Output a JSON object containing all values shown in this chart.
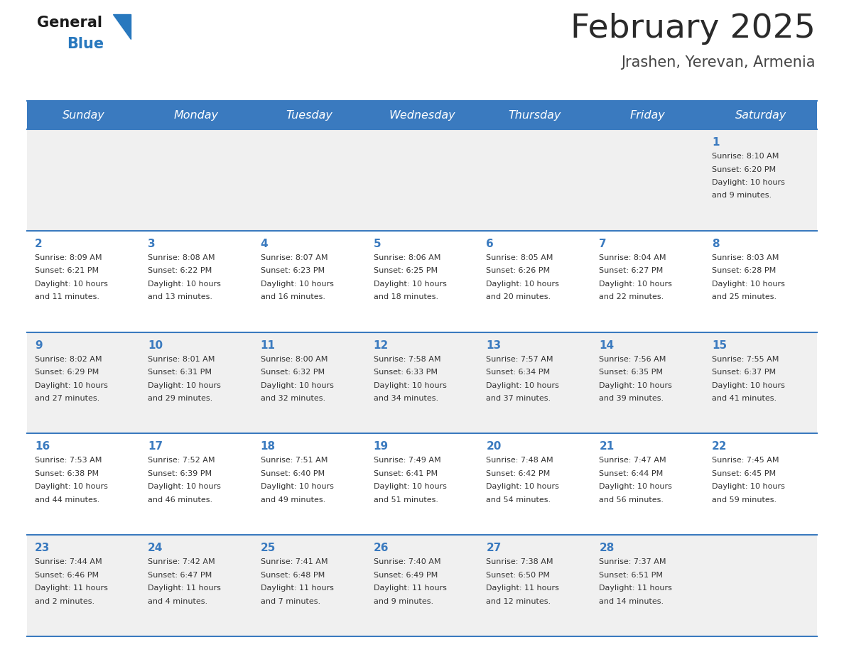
{
  "title": "February 2025",
  "subtitle": "Jrashen, Yerevan, Armenia",
  "days_of_week": [
    "Sunday",
    "Monday",
    "Tuesday",
    "Wednesday",
    "Thursday",
    "Friday",
    "Saturday"
  ],
  "header_bg": "#3a7abf",
  "header_text": "#ffffff",
  "row_bg_gray": "#f0f0f0",
  "row_bg_white": "#ffffff",
  "separator_color": "#3a7abf",
  "day_number_color": "#3a7abf",
  "text_color": "#333333",
  "title_color": "#2a2a2a",
  "subtitle_color": "#444444",
  "calendar": [
    [
      null,
      null,
      null,
      null,
      null,
      null,
      {
        "day": 1,
        "sunrise": "8:10 AM",
        "sunset": "6:20 PM",
        "daylight": "10 hours and 9 minutes."
      }
    ],
    [
      {
        "day": 2,
        "sunrise": "8:09 AM",
        "sunset": "6:21 PM",
        "daylight": "10 hours and 11 minutes."
      },
      {
        "day": 3,
        "sunrise": "8:08 AM",
        "sunset": "6:22 PM",
        "daylight": "10 hours and 13 minutes."
      },
      {
        "day": 4,
        "sunrise": "8:07 AM",
        "sunset": "6:23 PM",
        "daylight": "10 hours and 16 minutes."
      },
      {
        "day": 5,
        "sunrise": "8:06 AM",
        "sunset": "6:25 PM",
        "daylight": "10 hours and 18 minutes."
      },
      {
        "day": 6,
        "sunrise": "8:05 AM",
        "sunset": "6:26 PM",
        "daylight": "10 hours and 20 minutes."
      },
      {
        "day": 7,
        "sunrise": "8:04 AM",
        "sunset": "6:27 PM",
        "daylight": "10 hours and 22 minutes."
      },
      {
        "day": 8,
        "sunrise": "8:03 AM",
        "sunset": "6:28 PM",
        "daylight": "10 hours and 25 minutes."
      }
    ],
    [
      {
        "day": 9,
        "sunrise": "8:02 AM",
        "sunset": "6:29 PM",
        "daylight": "10 hours and 27 minutes."
      },
      {
        "day": 10,
        "sunrise": "8:01 AM",
        "sunset": "6:31 PM",
        "daylight": "10 hours and 29 minutes."
      },
      {
        "day": 11,
        "sunrise": "8:00 AM",
        "sunset": "6:32 PM",
        "daylight": "10 hours and 32 minutes."
      },
      {
        "day": 12,
        "sunrise": "7:58 AM",
        "sunset": "6:33 PM",
        "daylight": "10 hours and 34 minutes."
      },
      {
        "day": 13,
        "sunrise": "7:57 AM",
        "sunset": "6:34 PM",
        "daylight": "10 hours and 37 minutes."
      },
      {
        "day": 14,
        "sunrise": "7:56 AM",
        "sunset": "6:35 PM",
        "daylight": "10 hours and 39 minutes."
      },
      {
        "day": 15,
        "sunrise": "7:55 AM",
        "sunset": "6:37 PM",
        "daylight": "10 hours and 41 minutes."
      }
    ],
    [
      {
        "day": 16,
        "sunrise": "7:53 AM",
        "sunset": "6:38 PM",
        "daylight": "10 hours and 44 minutes."
      },
      {
        "day": 17,
        "sunrise": "7:52 AM",
        "sunset": "6:39 PM",
        "daylight": "10 hours and 46 minutes."
      },
      {
        "day": 18,
        "sunrise": "7:51 AM",
        "sunset": "6:40 PM",
        "daylight": "10 hours and 49 minutes."
      },
      {
        "day": 19,
        "sunrise": "7:49 AM",
        "sunset": "6:41 PM",
        "daylight": "10 hours and 51 minutes."
      },
      {
        "day": 20,
        "sunrise": "7:48 AM",
        "sunset": "6:42 PM",
        "daylight": "10 hours and 54 minutes."
      },
      {
        "day": 21,
        "sunrise": "7:47 AM",
        "sunset": "6:44 PM",
        "daylight": "10 hours and 56 minutes."
      },
      {
        "day": 22,
        "sunrise": "7:45 AM",
        "sunset": "6:45 PM",
        "daylight": "10 hours and 59 minutes."
      }
    ],
    [
      {
        "day": 23,
        "sunrise": "7:44 AM",
        "sunset": "6:46 PM",
        "daylight": "11 hours and 2 minutes."
      },
      {
        "day": 24,
        "sunrise": "7:42 AM",
        "sunset": "6:47 PM",
        "daylight": "11 hours and 4 minutes."
      },
      {
        "day": 25,
        "sunrise": "7:41 AM",
        "sunset": "6:48 PM",
        "daylight": "11 hours and 7 minutes."
      },
      {
        "day": 26,
        "sunrise": "7:40 AM",
        "sunset": "6:49 PM",
        "daylight": "11 hours and 9 minutes."
      },
      {
        "day": 27,
        "sunrise": "7:38 AM",
        "sunset": "6:50 PM",
        "daylight": "11 hours and 12 minutes."
      },
      {
        "day": 28,
        "sunrise": "7:37 AM",
        "sunset": "6:51 PM",
        "daylight": "11 hours and 14 minutes."
      },
      null
    ]
  ]
}
